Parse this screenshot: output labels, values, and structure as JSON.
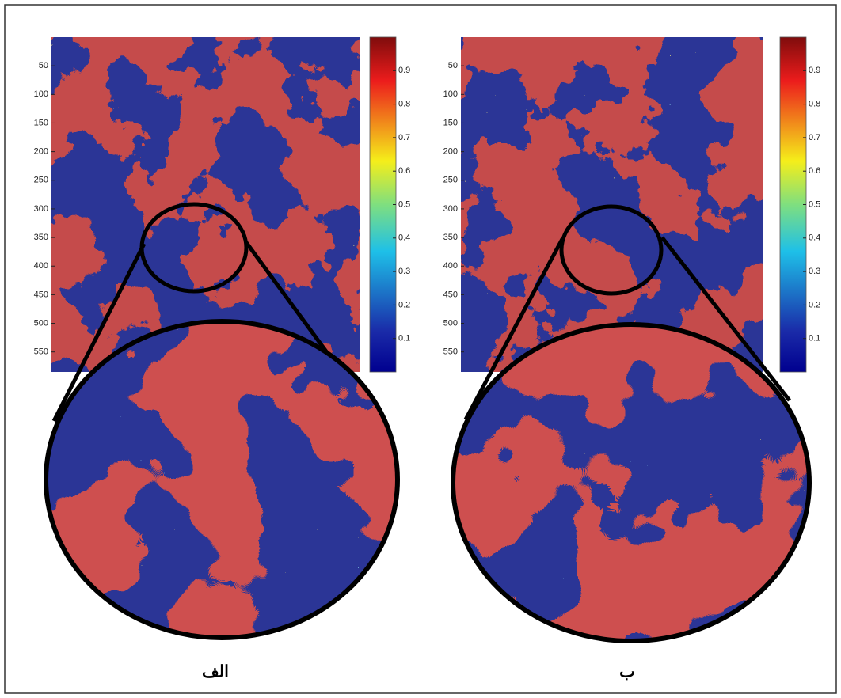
{
  "chart_data": [
    {
      "type": "heatmap",
      "label": "الف",
      "ylim": [
        0,
        585
      ],
      "yticks": [
        50,
        100,
        150,
        200,
        250,
        300,
        350,
        400,
        450,
        500,
        550
      ],
      "clim": [
        0,
        1
      ],
      "cticks": [
        0.1,
        0.2,
        0.3,
        0.4,
        0.5,
        0.6,
        0.7,
        0.8,
        0.9
      ]
    },
    {
      "type": "heatmap",
      "label": "ب",
      "ylim": [
        0,
        585
      ],
      "yticks": [
        50,
        100,
        150,
        200,
        250,
        300,
        350,
        400,
        450,
        500,
        550
      ],
      "clim": [
        0,
        1
      ],
      "cticks": [
        0.1,
        0.2,
        0.3,
        0.4,
        0.5,
        0.6,
        0.7,
        0.8,
        0.9
      ]
    }
  ]
}
